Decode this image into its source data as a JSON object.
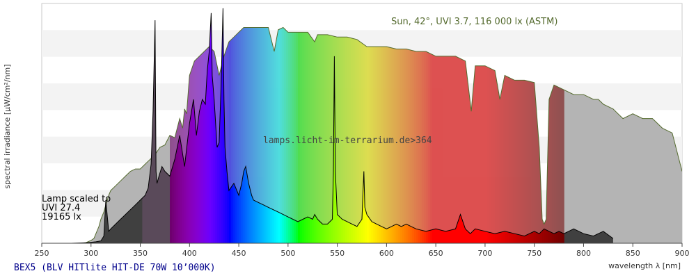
{
  "chart_data": {
    "type": "area",
    "ylabel": "spectral irradiance [µW/cm²/nm]",
    "xlabel": "wavelength λ [nm]",
    "xlim": [
      250,
      900
    ],
    "xticks": [
      250,
      300,
      350,
      400,
      450,
      500,
      550,
      600,
      650,
      700,
      750,
      800,
      850,
      900
    ],
    "ylim": [
      0,
      1
    ],
    "grid": "horizontal bands",
    "sun_label": "Sun, 42°, UVI 3.7, 116 000 lx (ASTM)",
    "lamp_label": [
      "Lamp scaled to",
      "UVI 27.4",
      "19165 lx"
    ],
    "watermark": "lamps.licht-im-terrarium.de>364",
    "footer_title": "BEX5 (BLV HITlite HIT-DE 70W 10’000K)",
    "series": [
      {
        "name": "Sun",
        "x": [
          290,
          295,
          300,
          303,
          305,
          308,
          310,
          313,
          315,
          318,
          320,
          325,
          330,
          335,
          340,
          345,
          350,
          355,
          360,
          365,
          370,
          375,
          380,
          385,
          390,
          393,
          395,
          397,
          400,
          405,
          410,
          415,
          420,
          425,
          430,
          435,
          440,
          445,
          450,
          455,
          460,
          470,
          480,
          486,
          490,
          495,
          500,
          510,
          520,
          527,
          530,
          540,
          550,
          560,
          570,
          580,
          590,
          600,
          610,
          620,
          630,
          640,
          650,
          660,
          670,
          680,
          686,
          690,
          700,
          710,
          715,
          720,
          725,
          730,
          740,
          750,
          755,
          758,
          760,
          762,
          765,
          770,
          780,
          790,
          800,
          810,
          815,
          820,
          830,
          840,
          850,
          860,
          870,
          880,
          890,
          900
        ],
        "values": [
          0,
          0.003,
          0.012,
          0.02,
          0.04,
          0.07,
          0.1,
          0.13,
          0.16,
          0.2,
          0.22,
          0.24,
          0.26,
          0.28,
          0.3,
          0.31,
          0.31,
          0.33,
          0.35,
          0.37,
          0.4,
          0.41,
          0.45,
          0.44,
          0.52,
          0.48,
          0.56,
          0.54,
          0.7,
          0.76,
          0.78,
          0.8,
          0.82,
          0.8,
          0.7,
          0.78,
          0.84,
          0.86,
          0.88,
          0.9,
          0.9,
          0.9,
          0.9,
          0.8,
          0.89,
          0.9,
          0.88,
          0.88,
          0.88,
          0.84,
          0.87,
          0.87,
          0.86,
          0.86,
          0.85,
          0.82,
          0.82,
          0.82,
          0.81,
          0.81,
          0.8,
          0.8,
          0.78,
          0.78,
          0.78,
          0.76,
          0.55,
          0.74,
          0.74,
          0.72,
          0.6,
          0.7,
          0.69,
          0.68,
          0.68,
          0.67,
          0.4,
          0.1,
          0.08,
          0.1,
          0.6,
          0.66,
          0.64,
          0.62,
          0.62,
          0.6,
          0.6,
          0.58,
          0.56,
          0.52,
          0.54,
          0.52,
          0.52,
          0.48,
          0.46,
          0.3
        ]
      },
      {
        "name": "Lamp",
        "x": [
          280,
          295,
          300,
          305,
          310,
          313,
          315,
          318,
          320,
          325,
          330,
          335,
          340,
          345,
          350,
          355,
          358,
          361,
          363,
          365,
          366,
          367,
          369,
          372,
          375,
          380,
          385,
          390,
          395,
          400,
          404,
          407,
          410,
          413,
          416,
          418,
          420,
          422,
          423,
          425,
          428,
          430,
          432,
          434,
          435,
          436,
          438,
          440,
          445,
          450,
          453,
          455,
          457,
          460,
          463,
          465,
          470,
          475,
          480,
          485,
          490,
          495,
          500,
          505,
          510,
          515,
          520,
          525,
          527,
          530,
          535,
          540,
          545,
          546,
          547,
          548,
          550,
          555,
          560,
          565,
          570,
          575,
          576,
          577,
          578,
          580,
          585,
          590,
          595,
          600,
          605,
          610,
          615,
          620,
          625,
          630,
          640,
          650,
          660,
          670,
          675,
          680,
          685,
          690,
          700,
          710,
          720,
          730,
          740,
          745,
          750,
          755,
          760,
          765,
          770,
          775,
          780,
          790,
          800,
          810,
          820,
          830
        ],
        "values": [
          0,
          0.002,
          0.004,
          0.006,
          0.01,
          0.03,
          0.18,
          0.05,
          0.06,
          0.08,
          0.1,
          0.12,
          0.14,
          0.16,
          0.18,
          0.2,
          0.23,
          0.33,
          0.55,
          0.93,
          0.3,
          0.25,
          0.28,
          0.32,
          0.3,
          0.28,
          0.35,
          0.45,
          0.32,
          0.5,
          0.6,
          0.45,
          0.55,
          0.6,
          0.58,
          0.72,
          0.8,
          0.96,
          0.7,
          0.6,
          0.4,
          0.42,
          0.65,
          0.98,
          0.6,
          0.4,
          0.3,
          0.22,
          0.25,
          0.2,
          0.25,
          0.3,
          0.32,
          0.25,
          0.2,
          0.18,
          0.17,
          0.16,
          0.15,
          0.14,
          0.13,
          0.12,
          0.11,
          0.1,
          0.09,
          0.1,
          0.11,
          0.1,
          0.12,
          0.1,
          0.08,
          0.08,
          0.1,
          0.3,
          0.78,
          0.3,
          0.12,
          0.1,
          0.09,
          0.08,
          0.07,
          0.1,
          0.2,
          0.3,
          0.15,
          0.12,
          0.09,
          0.08,
          0.07,
          0.06,
          0.07,
          0.08,
          0.07,
          0.08,
          0.07,
          0.06,
          0.05,
          0.06,
          0.05,
          0.06,
          0.12,
          0.06,
          0.04,
          0.06,
          0.05,
          0.04,
          0.05,
          0.04,
          0.03,
          0.04,
          0.05,
          0.04,
          0.06,
          0.05,
          0.04,
          0.05,
          0.04,
          0.06,
          0.04,
          0.03,
          0.05,
          0.02
        ]
      }
    ],
    "colors": {
      "sun_line": "#556b2f",
      "sun_label": "#556b2f",
      "footer_text": "#00008b",
      "gray_fill": "#b4b4b4",
      "lamp_outline": "#000000"
    }
  }
}
